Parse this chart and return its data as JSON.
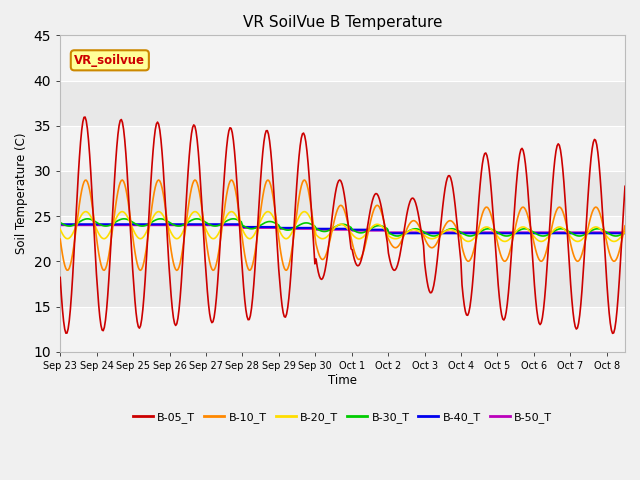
{
  "title": "VR SoilVue B Temperature",
  "ylabel": "Soil Temperature (C)",
  "xlabel": "Time",
  "ylim": [
    10,
    45
  ],
  "xlim": [
    0,
    15.5
  ],
  "background_color": "#f0f0f0",
  "plot_bg_color": "#e8e8e8",
  "grid_color": "#ffffff",
  "series_colors": [
    "#cc0000",
    "#ff8800",
    "#ffdd00",
    "#00cc00",
    "#0000ee",
    "#bb00bb"
  ],
  "series_names": [
    "B-05_T",
    "B-10_T",
    "B-20_T",
    "B-30_T",
    "B-40_T",
    "B-50_T"
  ],
  "series_lw": [
    1.2,
    1.2,
    1.2,
    1.2,
    1.5,
    1.5
  ],
  "yticks": [
    10,
    15,
    20,
    25,
    30,
    35,
    40,
    45
  ],
  "tick_labels": [
    "Sep 23",
    "Sep 24",
    "Sep 25",
    "Sep 26",
    "Sep 27",
    "Sep 28",
    "Sep 29",
    "Sep 30",
    "Oct 1",
    "Oct 2",
    "Oct 3",
    "Oct 4",
    "Oct 5",
    "Oct 6",
    "Oct 7",
    "Oct 8"
  ],
  "watermark_text": "VR_soilvue",
  "watermark_color": "#cc0000",
  "watermark_bg": "#ffff99",
  "watermark_border": "#cc8800",
  "figsize": [
    6.4,
    4.8
  ],
  "dpi": 100
}
